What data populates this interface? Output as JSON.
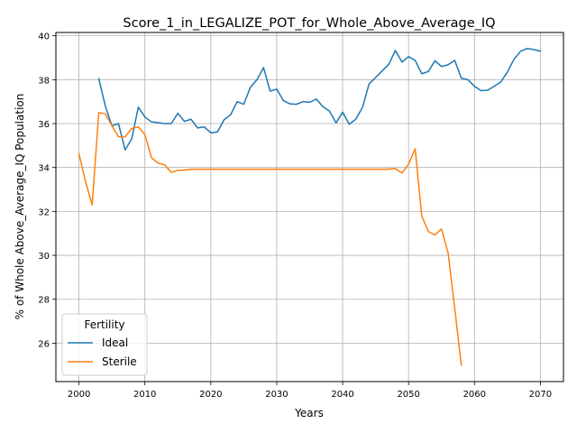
{
  "chart_data": {
    "type": "line",
    "title": "Score_1_in_LEGALIZE_POT_for_Whole_Above_Average_IQ",
    "xlabel": "Years",
    "ylabel": "% of Whole Above_Average_IQ Population",
    "xlim": [
      1996.5,
      2073.5
    ],
    "ylim": [
      24.25,
      40.15
    ],
    "x_ticks": [
      2000,
      2010,
      2020,
      2030,
      2040,
      2050,
      2060,
      2070
    ],
    "y_ticks": [
      26,
      28,
      30,
      32,
      34,
      36,
      38,
      40
    ],
    "grid": true,
    "legend": {
      "title": "Fertility",
      "placement": "lower-left"
    },
    "series": [
      {
        "name": "Ideal",
        "color": "#1f77b4",
        "x": [
          2003,
          2004,
          2005,
          2006,
          2007,
          2008,
          2009,
          2010,
          2011,
          2012,
          2013,
          2014,
          2015,
          2016,
          2017,
          2018,
          2019,
          2020,
          2021,
          2022,
          2023,
          2024,
          2025,
          2026,
          2027,
          2028,
          2029,
          2030,
          2031,
          2032,
          2033,
          2034,
          2035,
          2036,
          2037,
          2038,
          2039,
          2040,
          2041,
          2042,
          2043,
          2044,
          2045,
          2046,
          2047,
          2048,
          2049,
          2050,
          2051,
          2052,
          2053,
          2054,
          2055,
          2056,
          2057,
          2058,
          2059,
          2060,
          2061,
          2062,
          2063,
          2064,
          2065,
          2066,
          2067,
          2068,
          2069,
          2070
        ],
        "y": [
          38.05,
          36.8,
          35.9,
          36.0,
          34.8,
          35.3,
          36.75,
          36.3,
          36.08,
          36.04,
          36.0,
          36.0,
          36.47,
          36.1,
          36.2,
          35.8,
          35.85,
          35.58,
          35.62,
          36.17,
          36.4,
          37.0,
          36.88,
          37.65,
          38.0,
          38.55,
          37.48,
          37.57,
          37.05,
          36.9,
          36.88,
          37.0,
          36.97,
          37.12,
          36.77,
          36.57,
          36.03,
          36.52,
          35.97,
          36.2,
          36.73,
          37.8,
          38.1,
          38.4,
          38.7,
          39.33,
          38.8,
          39.05,
          38.88,
          38.27,
          38.37,
          38.86,
          38.6,
          38.68,
          38.88,
          38.07,
          38.0,
          37.7,
          37.5,
          37.52,
          37.7,
          37.9,
          38.35,
          38.93,
          39.3,
          39.42,
          39.37,
          39.3
        ]
      },
      {
        "name": "Sterile",
        "color": "#ff7f0e",
        "x": [
          2000,
          2001,
          2002,
          2003,
          2004,
          2005,
          2006,
          2007,
          2008,
          2009,
          2010,
          2011,
          2012,
          2013,
          2014,
          2015,
          2016,
          2017,
          2018,
          2019,
          2020,
          2021,
          2022,
          2023,
          2024,
          2025,
          2026,
          2027,
          2028,
          2029,
          2030,
          2031,
          2032,
          2033,
          2034,
          2035,
          2036,
          2037,
          2038,
          2039,
          2040,
          2041,
          2042,
          2043,
          2044,
          2045,
          2046,
          2047,
          2048,
          2049,
          2050,
          2051,
          2052,
          2053,
          2054,
          2055,
          2056,
          2057,
          2058
        ],
        "y": [
          34.63,
          33.35,
          32.3,
          36.5,
          36.45,
          35.9,
          35.4,
          35.4,
          35.78,
          35.85,
          35.5,
          34.45,
          34.2,
          34.12,
          33.78,
          33.87,
          33.88,
          33.92,
          33.92,
          33.92,
          33.92,
          33.92,
          33.92,
          33.92,
          33.92,
          33.92,
          33.92,
          33.92,
          33.92,
          33.92,
          33.92,
          33.92,
          33.92,
          33.92,
          33.92,
          33.92,
          33.92,
          33.92,
          33.92,
          33.92,
          33.92,
          33.92,
          33.92,
          33.92,
          33.92,
          33.92,
          33.92,
          33.92,
          33.95,
          33.75,
          34.15,
          34.85,
          31.8,
          31.08,
          30.93,
          31.2,
          30.1,
          27.6,
          25.0
        ]
      }
    ]
  }
}
